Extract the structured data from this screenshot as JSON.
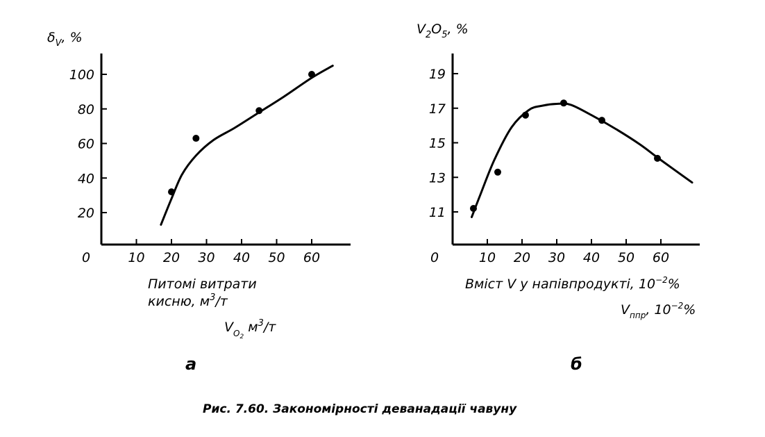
{
  "figure": {
    "caption": "Рис. 7.60. Закономірності деванадації чавуну"
  },
  "chart_data": [
    {
      "type": "scatter",
      "panel_label": "а",
      "y_title_main": "δ",
      "y_title_sub": "V",
      "y_title_rest": ", %",
      "xlabel_line1": "Питомі витрати",
      "xlabel_line2": "кисню, м",
      "xlabel_line2_sup": "3",
      "xlabel_line2_rest": "/т",
      "xlabel_symbol": "V",
      "xlabel_symbol_sub": "O",
      "xlabel_symbol_sub2": "2",
      "xlabel_symbol_unit": " м",
      "xlabel_symbol_sup": "3",
      "xlabel_symbol_rest": "/т",
      "origin_label": "0",
      "xlim": [
        0,
        71
      ],
      "ylim": [
        0,
        110
      ],
      "x_ticks": [
        10,
        20,
        30,
        40,
        50,
        60
      ],
      "x_tick_labels": [
        "10",
        "20",
        "30",
        "40",
        "50",
        "60"
      ],
      "y_ticks": [
        20,
        40,
        60,
        80,
        100
      ],
      "y_tick_labels": [
        "20",
        "40",
        "60",
        "80",
        "100"
      ],
      "series": [
        {
          "points": [
            [
              20,
              32
            ],
            [
              27,
              63
            ],
            [
              45,
              79
            ],
            [
              60,
              100
            ]
          ],
          "curve": [
            [
              17,
              13
            ],
            [
              20,
              28
            ],
            [
              23,
              42
            ],
            [
              27,
              53
            ],
            [
              32,
              62
            ],
            [
              38,
              69
            ],
            [
              45,
              78
            ],
            [
              52,
              87
            ],
            [
              60,
              98
            ],
            [
              66,
              105
            ]
          ]
        }
      ],
      "grid": false
    },
    {
      "type": "scatter",
      "panel_label": "б",
      "y_title_v": "V",
      "y_title_sub1": "2",
      "y_title_o": "O",
      "y_title_sub2": "5",
      "y_title_rest": ", %",
      "xlabel_line1": "Вміст V у напівпродукті, 10",
      "xlabel_line1_sup": "−2",
      "xlabel_line1_rest": "%",
      "xlabel_symbol": "V",
      "xlabel_symbol_sub": "ппр",
      "xlabel_symbol_rest": ", 10",
      "xlabel_symbol_sup": "−2",
      "xlabel_symbol_end": "%",
      "origin_label": "0",
      "xlim": [
        0,
        71
      ],
      "ylim": [
        9,
        20
      ],
      "x_ticks": [
        10,
        20,
        30,
        40,
        50,
        60
      ],
      "x_tick_labels": [
        "10",
        "20",
        "30",
        "40",
        "50",
        "60"
      ],
      "y_ticks": [
        11,
        13,
        15,
        17,
        19
      ],
      "y_tick_labels": [
        "11",
        "13",
        "15",
        "17",
        "19"
      ],
      "series": [
        {
          "points": [
            [
              6,
              11.2
            ],
            [
              13,
              13.3
            ],
            [
              21,
              16.6
            ],
            [
              32,
              17.3
            ],
            [
              43,
              16.3
            ],
            [
              59,
              14.1
            ]
          ],
          "curve": [
            [
              5.5,
              10.7
            ],
            [
              8,
              12.0
            ],
            [
              12,
              14.0
            ],
            [
              17,
              15.9
            ],
            [
              22,
              16.9
            ],
            [
              26,
              17.15
            ],
            [
              30,
              17.25
            ],
            [
              34,
              17.2
            ],
            [
              40,
              16.6
            ],
            [
              47,
              15.8
            ],
            [
              54,
              14.9
            ],
            [
              60,
              14.0
            ],
            [
              69,
              12.7
            ]
          ]
        }
      ],
      "grid": false
    }
  ]
}
